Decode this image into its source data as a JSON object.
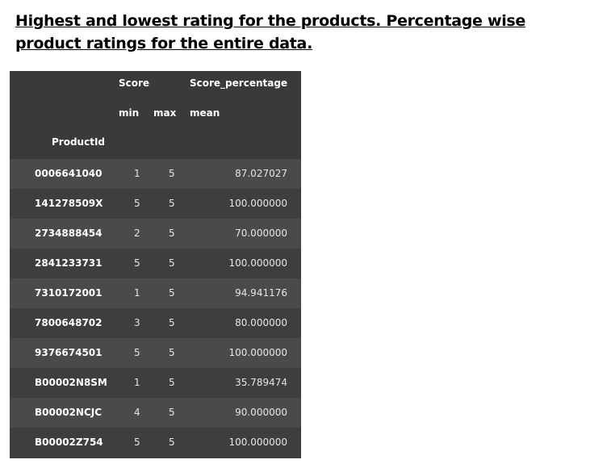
{
  "heading": "Highest and lowest rating for the products. Percentage wise product ratings for the entire data.",
  "table": {
    "col_groups": {
      "score": "Score",
      "score_percentage": "Score_percentage"
    },
    "sub_headers": {
      "min": "min",
      "max": "max",
      "mean": "mean"
    },
    "index_name": "ProductId",
    "rows": [
      {
        "product_id": "0006641040",
        "min": "1",
        "max": "5",
        "mean": "87.027027"
      },
      {
        "product_id": "141278509X",
        "min": "5",
        "max": "5",
        "mean": "100.000000"
      },
      {
        "product_id": "2734888454",
        "min": "2",
        "max": "5",
        "mean": "70.000000"
      },
      {
        "product_id": "2841233731",
        "min": "5",
        "max": "5",
        "mean": "100.000000"
      },
      {
        "product_id": "7310172001",
        "min": "1",
        "max": "5",
        "mean": "94.941176"
      },
      {
        "product_id": "7800648702",
        "min": "3",
        "max": "5",
        "mean": "80.000000"
      },
      {
        "product_id": "9376674501",
        "min": "5",
        "max": "5",
        "mean": "100.000000"
      },
      {
        "product_id": "B00002N8SM",
        "min": "1",
        "max": "5",
        "mean": "35.789474"
      },
      {
        "product_id": "B00002NCJC",
        "min": "4",
        "max": "5",
        "mean": "90.000000"
      },
      {
        "product_id": "B00002Z754",
        "min": "5",
        "max": "5",
        "mean": "100.000000"
      }
    ]
  }
}
